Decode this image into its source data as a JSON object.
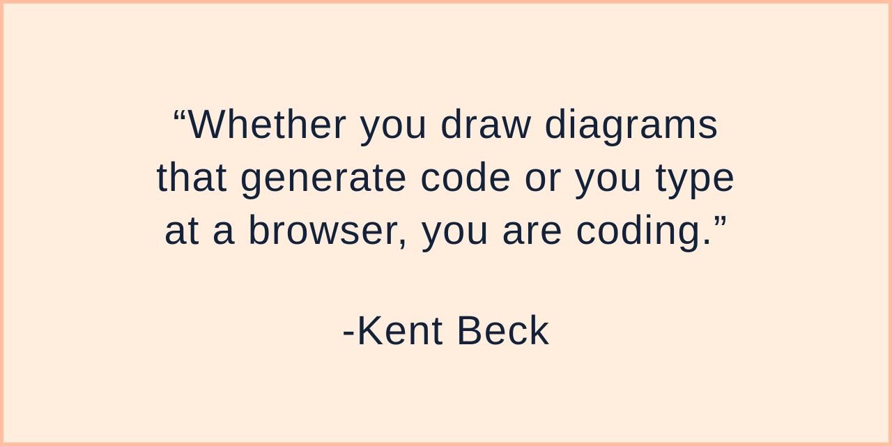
{
  "quote": {
    "lines": [
      "“Whether you draw diagrams",
      "that generate code or you type",
      "at a browser, you are coding.”"
    ]
  },
  "author": "-Kent Beck",
  "colors": {
    "background": "#ffeedd",
    "border": "#ffbf9f",
    "text": "#13223b"
  }
}
